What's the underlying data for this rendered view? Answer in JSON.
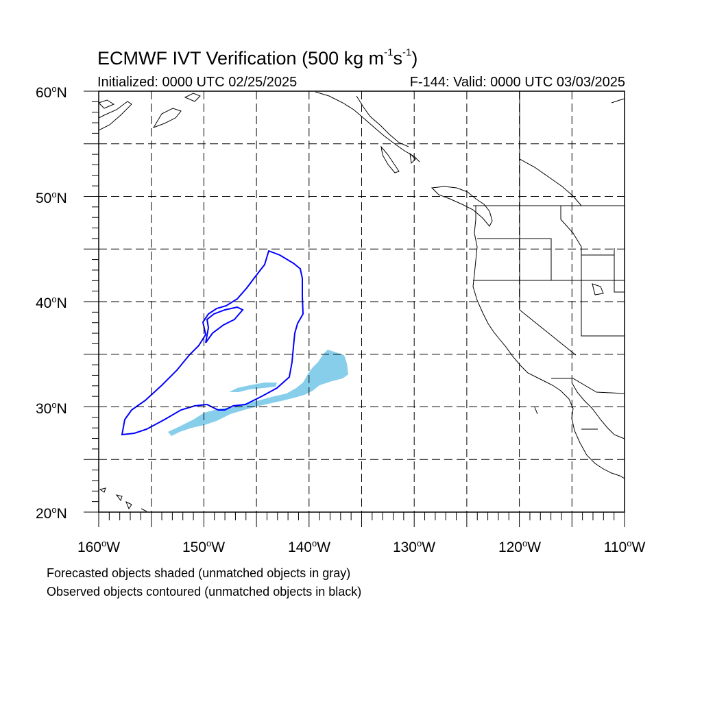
{
  "title": {
    "main": "ECMWF IVT Verification (500 kg m",
    "exp1": "-1",
    "mid": "s",
    "exp2": "-1",
    "end": ")"
  },
  "initialized": "Initialized: 0000 UTC 02/25/2025",
  "valid": "F-144: Valid: 0000 UTC 03/03/2025",
  "degree_symbol": "o",
  "lat_labels": [
    {
      "num": "60",
      "hemi": "N"
    },
    {
      "num": "50",
      "hemi": "N"
    },
    {
      "num": "40",
      "hemi": "N"
    },
    {
      "num": "30",
      "hemi": "N"
    },
    {
      "num": "20",
      "hemi": "N"
    }
  ],
  "lon_labels": [
    {
      "num": "160",
      "hemi": "W"
    },
    {
      "num": "150",
      "hemi": "W"
    },
    {
      "num": "140",
      "hemi": "W"
    },
    {
      "num": "130",
      "hemi": "W"
    },
    {
      "num": "120",
      "hemi": "W"
    },
    {
      "num": "110",
      "hemi": "W"
    }
  ],
  "notes": {
    "forecast": "Forecasted objects shaded (unmatched objects in gray)",
    "observed": "Observed objects contoured (unmatched objects in black)"
  },
  "colors": {
    "forecast_fill": "#87ceeb",
    "observed_contour": "#0000ff",
    "coast": "#000000",
    "grid": "#555555"
  }
}
